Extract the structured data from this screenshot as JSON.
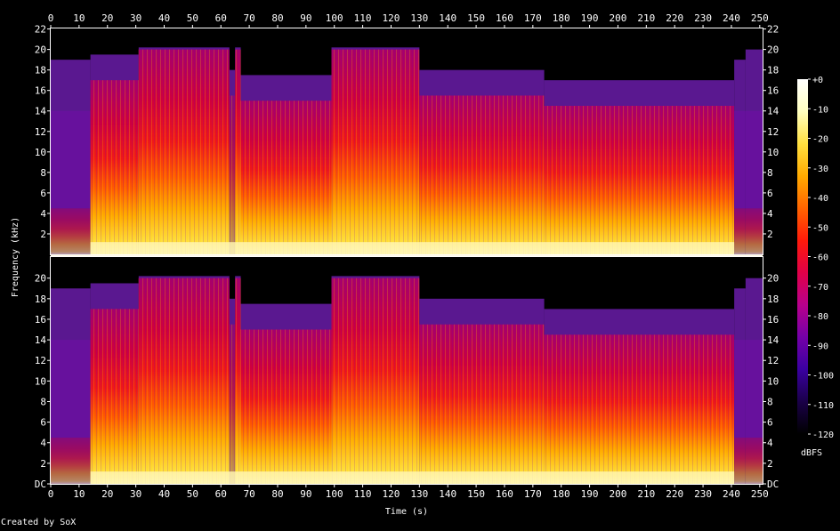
{
  "chart_data": {
    "type": "heatmap",
    "xlabel": "Time (s)",
    "ylabel": "Frequency (kHz)",
    "x_ticks": [
      0,
      10,
      20,
      30,
      40,
      50,
      60,
      70,
      80,
      90,
      100,
      110,
      120,
      130,
      140,
      150,
      160,
      170,
      180,
      190,
      200,
      210,
      220,
      230,
      240,
      250
    ],
    "xlim": [
      0,
      251
    ],
    "ylim_khz": [
      0,
      22.05
    ],
    "channels": [
      {
        "y_ticks": [
          "2",
          "4",
          "6",
          "8",
          "10",
          "12",
          "14",
          "16",
          "18",
          "20",
          "22"
        ]
      },
      {
        "y_ticks": [
          "DC",
          "2",
          "4",
          "6",
          "8",
          "10",
          "12",
          "14",
          "16",
          "18",
          "20"
        ]
      }
    ],
    "y_tick_values_khz": [
      0,
      2,
      4,
      6,
      8,
      10,
      12,
      14,
      16,
      18,
      20,
      22
    ],
    "colorbar": {
      "unit": "dBFS",
      "ticks": [
        "+0",
        "-10",
        "-20",
        "-30",
        "-40",
        "-50",
        "-60",
        "-70",
        "-80",
        "-90",
        "-100",
        "-110",
        "-120"
      ],
      "range_db": [
        -120,
        0
      ],
      "colors": [
        "#000000",
        "#1a0048",
        "#3a00a0",
        "#7400a8",
        "#b8008c",
        "#e00048",
        "#ff1a0a",
        "#ff6400",
        "#ffaa00",
        "#ffe040",
        "#ffffc0",
        "#ffffff"
      ]
    },
    "segments": [
      {
        "start": 0,
        "end": 14,
        "level": "quiet",
        "top_khz": 19
      },
      {
        "start": 14,
        "end": 31,
        "level": "loud",
        "top_khz": 19.5
      },
      {
        "start": 31,
        "end": 63,
        "level": "very_loud",
        "top_khz": 20.2
      },
      {
        "start": 63,
        "end": 65,
        "level": "dip",
        "top_khz": 18
      },
      {
        "start": 65,
        "end": 67,
        "level": "very_loud",
        "top_khz": 20.2
      },
      {
        "start": 67,
        "end": 99,
        "level": "loud",
        "top_khz": 17.5
      },
      {
        "start": 99,
        "end": 130,
        "level": "very_loud",
        "top_khz": 20.2
      },
      {
        "start": 130,
        "end": 174,
        "level": "loud",
        "top_khz": 18
      },
      {
        "start": 174,
        "end": 241,
        "level": "loud",
        "top_khz": 17
      },
      {
        "start": 241,
        "end": 245,
        "level": "quiet",
        "top_khz": 19
      },
      {
        "start": 245,
        "end": 251,
        "level": "quiet",
        "top_khz": 20
      }
    ]
  },
  "footer": {
    "credit": "Created by SoX"
  }
}
